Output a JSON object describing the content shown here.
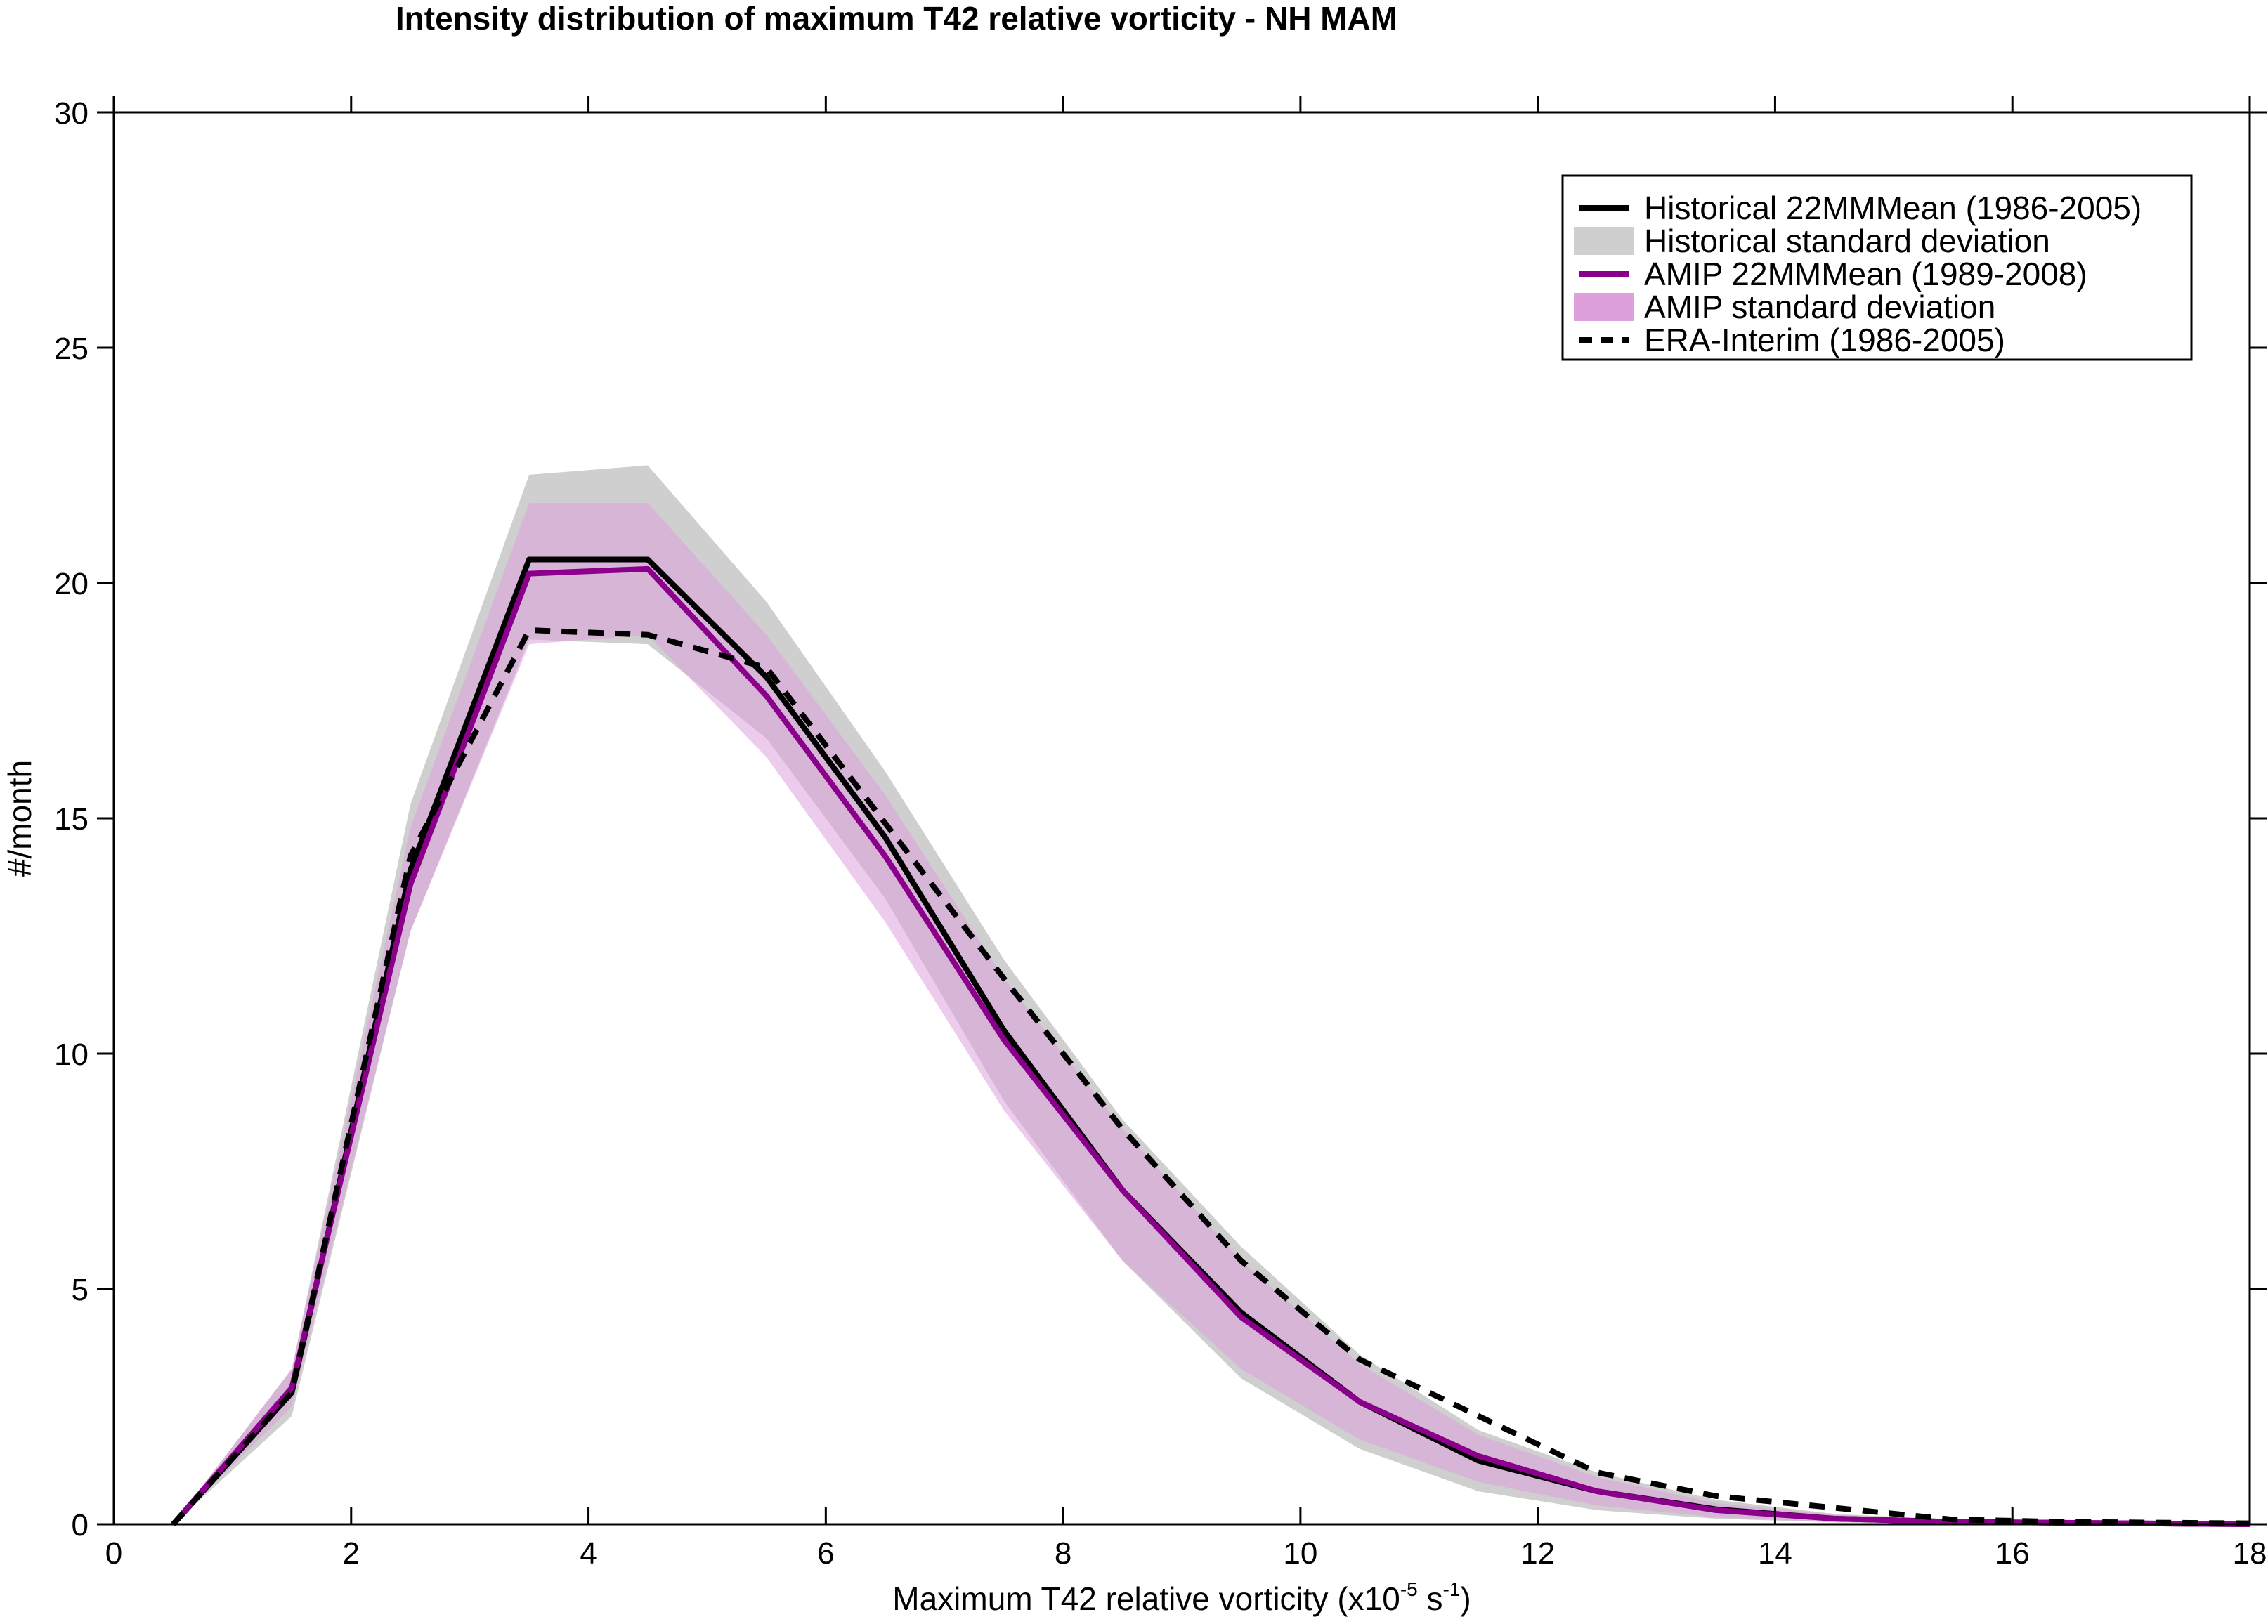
{
  "chart_data": {
    "type": "line",
    "title": "Intensity distribution of maximum T42 relative vorticity - NH MAM",
    "xlabel_main": "Maximum T42 relative vorticity (x10",
    "xlabel_exp1": "-5",
    "xlabel_mid": " s",
    "xlabel_exp2": "-1",
    "xlabel_end": ")",
    "ylabel": "#/month",
    "xlim": [
      0,
      18
    ],
    "ylim": [
      0,
      30
    ],
    "xticks": [
      "0",
      "2",
      "4",
      "6",
      "8",
      "10",
      "12",
      "14",
      "16",
      "18"
    ],
    "yticks": [
      "0",
      "5",
      "10",
      "15",
      "20",
      "25",
      "30"
    ],
    "grid": false,
    "legend_position": "top-right",
    "x": [
      0.5,
      1.5,
      2.5,
      3.5,
      4.5,
      5.5,
      6.5,
      7.5,
      8.5,
      9.5,
      10.5,
      11.5,
      12.5,
      13.5,
      14.5,
      15.5,
      16.5,
      17.5,
      18
    ],
    "series": [
      {
        "name": "Historical 22MMMean (1986-2005)",
        "kind": "line",
        "color": "#000000",
        "values": [
          0,
          2.8,
          13.9,
          20.5,
          20.5,
          18.0,
          14.6,
          10.5,
          7.1,
          4.5,
          2.6,
          1.35,
          0.7,
          0.32,
          0.12,
          0.05,
          0.03,
          0.01,
          0.0
        ]
      },
      {
        "name": "Historical standard deviation",
        "kind": "band",
        "color": "#cfcfcf",
        "lower": [
          0,
          2.3,
          12.6,
          18.8,
          18.7,
          16.7,
          13.3,
          9.0,
          5.6,
          3.1,
          1.6,
          0.7,
          0.3,
          0.12,
          0.04,
          0.01,
          0.0,
          0.0,
          0.0
        ],
        "upper": [
          0,
          3.3,
          15.3,
          22.3,
          22.5,
          19.6,
          16.0,
          12.0,
          8.6,
          5.9,
          3.6,
          2.0,
          1.1,
          0.52,
          0.22,
          0.1,
          0.06,
          0.03,
          0.01
        ]
      },
      {
        "name": "AMIP 22MMMean (1989-2008)",
        "kind": "line",
        "color": "#8b008b",
        "values": [
          0,
          2.9,
          13.6,
          20.2,
          20.3,
          17.6,
          14.2,
          10.3,
          7.1,
          4.4,
          2.6,
          1.45,
          0.7,
          0.3,
          0.12,
          0.05,
          0.03,
          0.01,
          0.0
        ]
      },
      {
        "name": "AMIP standard deviation",
        "kind": "band",
        "color": "#dda0dd",
        "lower": [
          0,
          2.5,
          12.6,
          18.7,
          18.9,
          16.3,
          12.8,
          8.8,
          5.6,
          3.3,
          1.8,
          0.9,
          0.4,
          0.15,
          0.05,
          0.02,
          0.01,
          0.0,
          0.0
        ],
        "upper": [
          0,
          3.3,
          14.8,
          21.7,
          21.7,
          18.9,
          15.5,
          11.6,
          8.4,
          5.6,
          3.4,
          1.9,
          1.0,
          0.45,
          0.2,
          0.09,
          0.05,
          0.02,
          0.01
        ]
      },
      {
        "name": "ERA-Interim (1986-2005)",
        "kind": "dashed",
        "color": "#000000",
        "values": [
          0,
          2.8,
          14.2,
          19.0,
          18.9,
          18.2,
          14.9,
          11.6,
          8.4,
          5.6,
          3.5,
          2.3,
          1.1,
          0.6,
          0.35,
          0.1,
          0.05,
          0.03,
          0.02
        ]
      }
    ]
  }
}
